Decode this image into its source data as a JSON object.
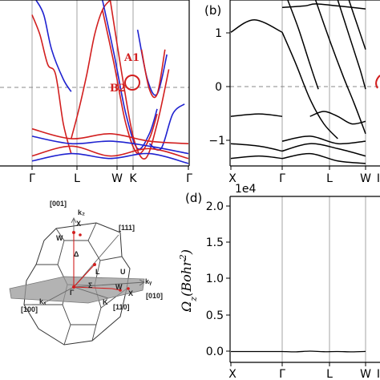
{
  "colors": {
    "red": "#d21f1f",
    "blue": "#1f22d0",
    "black": "#000000",
    "grid": "#9a9a9a",
    "dash": "#888888",
    "bz_fill": "#ffffff",
    "plane": "#9a9a9a"
  },
  "panel_a": {
    "annotations": [
      "A1",
      "B2"
    ],
    "x_labels": [
      "Γ",
      "L",
      "W",
      "K",
      "Γ"
    ]
  },
  "panel_b": {
    "tag": "(b)",
    "y_ticks": [
      "1",
      "0",
      "−1"
    ],
    "x_labels": [
      "X",
      "Γ",
      "L",
      "W",
      "I"
    ]
  },
  "panel_c": {
    "labels": {
      "dir001": "[001]",
      "kz": "k₂",
      "X_top": "X",
      "dir111": "[111]",
      "W_top": "W",
      "Delta": "Δ",
      "L": "L",
      "U": "U",
      "Sigma": "Σ",
      "W_right": "W",
      "Gamma": "Γ",
      "X_right": "X",
      "ky": "kᵧ",
      "dir010": "[010]",
      "dir100": "[100]",
      "kx": "kₓ",
      "K": "K",
      "dir110": "[110]"
    }
  },
  "panel_d": {
    "tag": "(d)",
    "exponent": "1e4",
    "ylabel": "Ω_z(Bohr^2)",
    "y_ticks": [
      "2.0",
      "1.5",
      "1.0",
      "0.5",
      "0.0"
    ],
    "x_labels": [
      "X",
      "Γ",
      "L",
      "W",
      "I"
    ]
  },
  "chart_data": [
    {
      "type": "line",
      "panel": "a",
      "x_ticks": [
        "Γ",
        "L",
        "W",
        "K",
        "Γ"
      ],
      "fermi_level": 0,
      "annotations": [
        "A1",
        "B2"
      ],
      "series": [
        {
          "color": "red",
          "x": [
            0,
            0.2,
            0.4,
            0.6,
            0.8,
            1.0
          ],
          "y": [
            1.6,
            1.2,
            0.6,
            0.4,
            -0.6,
            -1.2
          ]
        },
        {
          "color": "red",
          "x": [
            1.0,
            1.2,
            1.4,
            1.6,
            1.8,
            2.0
          ],
          "y": [
            -0.9,
            -0.3,
            0.4,
            1.2,
            1.7,
            1.9
          ]
        },
        {
          "color": "blue",
          "x": [
            0.1,
            0.3,
            0.5,
            0.8,
            1.0
          ],
          "y": [
            1.9,
            1.6,
            0.9,
            0.3,
            0.05
          ]
        },
        {
          "color": "red",
          "x": [
            1.8,
            2.1,
            2.4,
            2.7,
            3.0,
            3.2
          ],
          "y": [
            1.7,
            0.6,
            -0.6,
            -1.2,
            -0.9,
            -0.4
          ]
        },
        {
          "color": "blue",
          "x": [
            1.8,
            2.1,
            2.4,
            2.7,
            3.0,
            3.2
          ],
          "y": [
            1.9,
            0.8,
            -0.4,
            -1.1,
            -0.8,
            -0.3
          ]
        },
        {
          "color": "red",
          "x": [
            2.0,
            2.3,
            2.6,
            2.9,
            3.2,
            3.5
          ],
          "y": [
            1.9,
            0.4,
            -0.9,
            -1.3,
            -0.6,
            0.5
          ]
        },
        {
          "color": "blue",
          "x": [
            2.7,
            2.95,
            3.2,
            3.45
          ],
          "y": [
            1.3,
            0.3,
            0.0,
            0.8
          ]
        },
        {
          "color": "red",
          "x": [
            2.8,
            3.0,
            3.2,
            3.4
          ],
          "y": [
            0.9,
            0.1,
            0.0,
            0.9
          ]
        },
        {
          "color": "blue",
          "x": [
            3.0,
            3.3,
            3.6,
            3.9
          ],
          "y": [
            -1.0,
            -1.1,
            -0.4,
            -0.2
          ]
        },
        {
          "color": "red",
          "x": [
            0,
            1,
            2,
            3,
            4
          ],
          "y": [
            -1.25,
            -1.05,
            -1.25,
            -1.1,
            -1.3
          ]
        },
        {
          "color": "blue",
          "x": [
            0,
            1,
            2,
            3,
            4
          ],
          "y": [
            -1.35,
            -1.2,
            -1.3,
            -1.2,
            -1.4
          ]
        },
        {
          "color": "blue",
          "x": [
            0,
            1,
            2,
            3,
            4
          ],
          "y": [
            -0.85,
            -1.0,
            -0.95,
            -1.05,
            -1.2
          ]
        },
        {
          "color": "red",
          "x": [
            0,
            1,
            2,
            3,
            4
          ],
          "y": [
            -0.7,
            -0.9,
            -0.8,
            -0.95,
            -1.0
          ]
        }
      ]
    },
    {
      "type": "line",
      "panel": "b",
      "x_ticks": [
        "X",
        "Γ",
        "L",
        "W",
        "I"
      ],
      "y_ticks": [
        1,
        0,
        -1
      ],
      "ylim": [
        -1.45,
        1.9
      ],
      "fermi_level": 0,
      "series": [
        {
          "color": "black",
          "x": [
            0,
            0.5,
            1.0,
            1.5,
            2.0
          ],
          "y": [
            1.25,
            0.6,
            -0.1,
            -0.6,
            -0.9
          ]
        },
        {
          "color": "black",
          "x": [
            0.2,
            0.6,
            1.0,
            1.3
          ],
          "y": [
            1.9,
            1.3,
            0.6,
            0.1
          ]
        },
        {
          "color": "black",
          "x": [
            1.0,
            1.5,
            2.0,
            2.5,
            3.0
          ],
          "y": [
            -0.45,
            -0.35,
            -0.45,
            -0.6,
            -0.55
          ]
        },
        {
          "color": "black",
          "x": [
            1.2,
            1.7,
            2.2,
            2.6,
            3.0
          ],
          "y": [
            1.9,
            1.1,
            0.35,
            -0.2,
            -0.8
          ]
        },
        {
          "color": "black",
          "x": [
            2.0,
            2.4,
            2.8,
            3.0
          ],
          "y": [
            1.9,
            1.2,
            0.5,
            0.1
          ]
        },
        {
          "color": "black",
          "x": [
            2.4,
            2.7,
            3.0
          ],
          "y": [
            1.9,
            1.4,
            0.9
          ]
        },
        {
          "color": "black",
          "x": [
            0,
            1,
            2,
            3
          ],
          "y": [
            -1.15,
            -1.0,
            -1.1,
            -1.25
          ]
        },
        {
          "color": "black",
          "x": [
            0,
            1,
            2,
            3
          ],
          "y": [
            -1.3,
            -1.2,
            -1.35,
            -1.4
          ]
        },
        {
          "color": "black",
          "x": [
            0,
            1,
            2,
            3
          ],
          "y": [
            -0.95,
            -0.85,
            -1.0,
            -0.95
          ]
        },
        {
          "color": "black",
          "x": [
            0.0,
            0.8,
            1.2,
            2.0,
            3.0
          ],
          "y": [
            1.75,
            1.78,
            1.82,
            1.78,
            1.72
          ]
        }
      ]
    },
    {
      "type": "line",
      "panel": "d",
      "x_ticks": [
        "X",
        "Γ",
        "L",
        "W",
        "I"
      ],
      "y_ticks": [
        2.0,
        1.5,
        1.0,
        0.5,
        0.0
      ],
      "ylim": [
        -0.12,
        2.0
      ],
      "exponent": "1e4",
      "ylabel": "Ω_z(Bohr^2)",
      "series": [
        {
          "color": "black",
          "x": [
            0,
            0.5,
            1.0,
            1.5,
            2.0,
            2.5,
            3.0
          ],
          "y": [
            -0.005,
            -0.01,
            0.0,
            -0.008,
            -0.005,
            -0.01,
            -0.004
          ]
        }
      ]
    }
  ]
}
